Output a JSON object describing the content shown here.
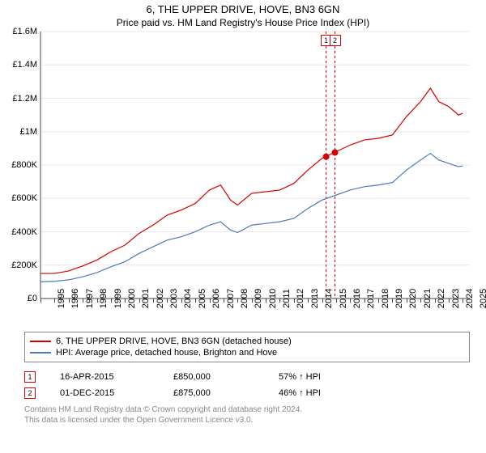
{
  "title": "6, THE UPPER DRIVE, HOVE, BN3 6GN",
  "subtitle": "Price paid vs. HM Land Registry's House Price Index (HPI)",
  "chart": {
    "type": "line",
    "background_color": "#ffffff",
    "grid_color": "#e8e8e8",
    "axis_color": "#444444",
    "ylim": [
      0,
      1600000
    ],
    "ytick_step": 200000,
    "ytick_labels": [
      "£0",
      "£200K",
      "£400K",
      "£600K",
      "£800K",
      "£1M",
      "£1.2M",
      "£1.4M",
      "£1.6M"
    ],
    "ytick_fontsize": 11,
    "x_years": [
      1995,
      1996,
      1997,
      1998,
      1999,
      2000,
      2001,
      2002,
      2003,
      2004,
      2005,
      2006,
      2007,
      2008,
      2009,
      2010,
      2011,
      2012,
      2013,
      2014,
      2015,
      2016,
      2017,
      2018,
      2019,
      2020,
      2021,
      2022,
      2023,
      2024,
      2025
    ],
    "x_range": [
      1995,
      2025.5
    ],
    "xtick_fontsize": 11,
    "series": [
      {
        "name": "6, THE UPPER DRIVE, HOVE, BN3 6GN (detached house)",
        "color": "#d40000",
        "line_width": 1.2,
        "points": [
          [
            1995,
            150000
          ],
          [
            1996,
            150000
          ],
          [
            1997,
            165000
          ],
          [
            1998,
            195000
          ],
          [
            1999,
            230000
          ],
          [
            2000,
            280000
          ],
          [
            2001,
            320000
          ],
          [
            2002,
            390000
          ],
          [
            2003,
            440000
          ],
          [
            2004,
            500000
          ],
          [
            2005,
            530000
          ],
          [
            2006,
            570000
          ],
          [
            2007,
            650000
          ],
          [
            2007.8,
            680000
          ],
          [
            2008.5,
            590000
          ],
          [
            2009,
            560000
          ],
          [
            2010,
            630000
          ],
          [
            2011,
            640000
          ],
          [
            2012,
            650000
          ],
          [
            2013,
            690000
          ],
          [
            2014,
            770000
          ],
          [
            2015,
            840000
          ],
          [
            2016,
            880000
          ],
          [
            2017,
            920000
          ],
          [
            2018,
            950000
          ],
          [
            2019,
            960000
          ],
          [
            2020,
            980000
          ],
          [
            2021,
            1090000
          ],
          [
            2022,
            1180000
          ],
          [
            2022.7,
            1260000
          ],
          [
            2023.3,
            1180000
          ],
          [
            2024,
            1150000
          ],
          [
            2024.7,
            1100000
          ],
          [
            2025,
            1110000
          ]
        ]
      },
      {
        "name": "HPI: Average price, detached house, Brighton and Hove",
        "color": "#4a78c4",
        "line_width": 1.2,
        "points": [
          [
            1995,
            100000
          ],
          [
            1996,
            103000
          ],
          [
            1997,
            112000
          ],
          [
            1998,
            130000
          ],
          [
            1999,
            155000
          ],
          [
            2000,
            190000
          ],
          [
            2001,
            220000
          ],
          [
            2002,
            270000
          ],
          [
            2003,
            310000
          ],
          [
            2004,
            350000
          ],
          [
            2005,
            370000
          ],
          [
            2006,
            400000
          ],
          [
            2007,
            440000
          ],
          [
            2007.8,
            460000
          ],
          [
            2008.5,
            410000
          ],
          [
            2009,
            395000
          ],
          [
            2010,
            440000
          ],
          [
            2011,
            450000
          ],
          [
            2012,
            460000
          ],
          [
            2013,
            480000
          ],
          [
            2014,
            540000
          ],
          [
            2015,
            590000
          ],
          [
            2016,
            620000
          ],
          [
            2017,
            650000
          ],
          [
            2018,
            670000
          ],
          [
            2019,
            680000
          ],
          [
            2020,
            695000
          ],
          [
            2021,
            770000
          ],
          [
            2022,
            830000
          ],
          [
            2022.7,
            870000
          ],
          [
            2023.3,
            830000
          ],
          [
            2024,
            810000
          ],
          [
            2024.7,
            790000
          ],
          [
            2025,
            795000
          ]
        ]
      }
    ],
    "sale_markers": [
      {
        "num": "1",
        "year": 2015.29,
        "price": 850000,
        "color": "#d40000",
        "vline_color": "#d40000"
      },
      {
        "num": "2",
        "year": 2015.92,
        "price": 875000,
        "color": "#d40000",
        "vline_color": "#d40000"
      }
    ],
    "vline_dash": "3,3",
    "marker_radius": 4
  },
  "legend": {
    "border_color": "#888888",
    "fontsize": 11
  },
  "sales_table": {
    "rows": [
      {
        "num": "1",
        "date": "16-APR-2015",
        "price": "£850,000",
        "delta": "57% ↑ HPI",
        "color": "#d40000"
      },
      {
        "num": "2",
        "date": "01-DEC-2015",
        "price": "£875,000",
        "delta": "46% ↑ HPI",
        "color": "#d40000"
      }
    ],
    "fontsize": 11
  },
  "footer": {
    "line1": "Contains HM Land Registry data © Crown copyright and database right 2024.",
    "line2": "This data is licensed under the Open Government Licence v3.0.",
    "color": "#888888",
    "fontsize": 10
  }
}
